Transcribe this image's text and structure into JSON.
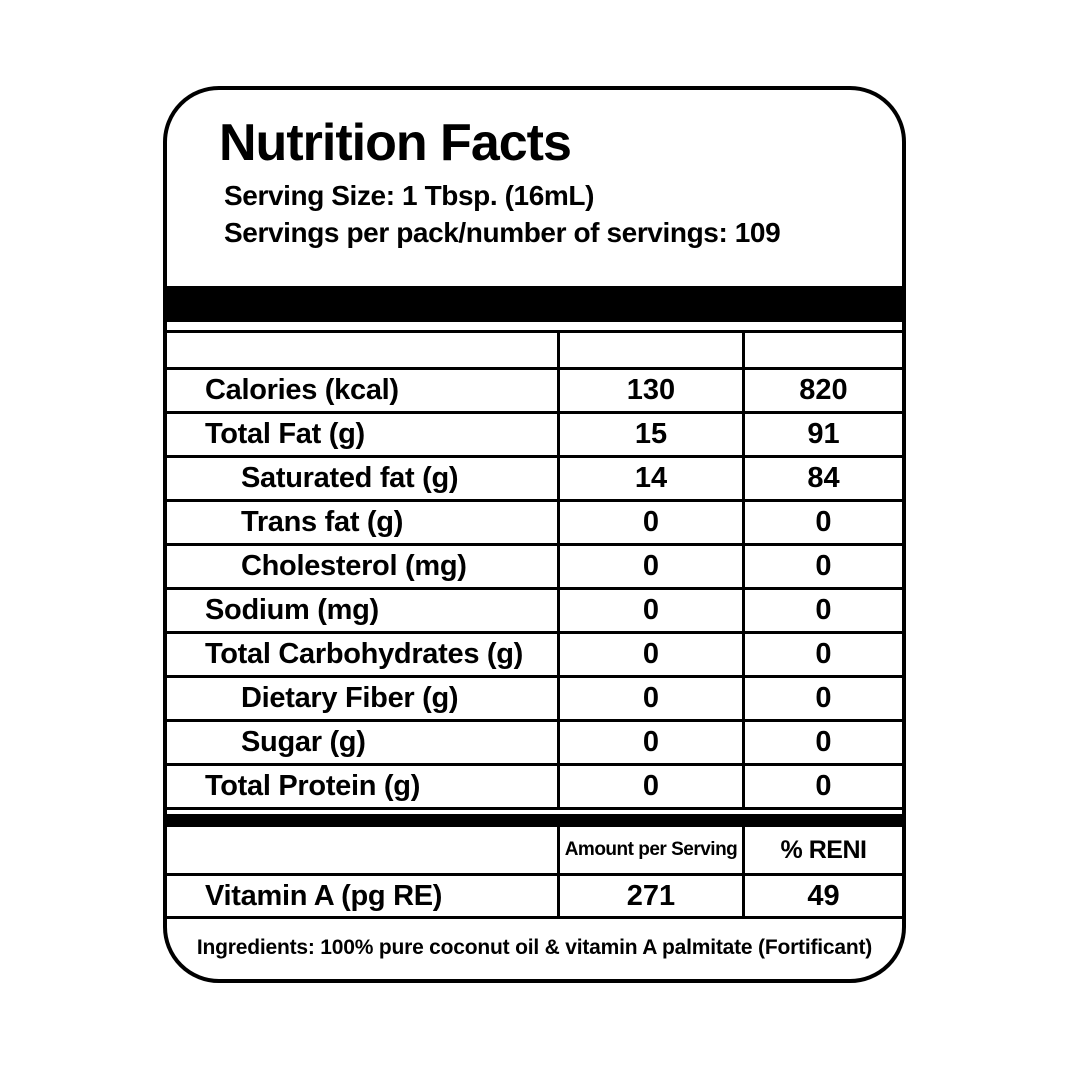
{
  "header": {
    "title": "Nutrition Facts",
    "serving_size": "Serving Size: 1 Tbsp. (16mL)",
    "servings_per_pack": "Servings per pack/number of servings: 109"
  },
  "table": {
    "rows": [
      {
        "label": "Calories (kcal)",
        "per_serving": "130",
        "per_pack": "820"
      },
      {
        "label": "Total Fat (g)",
        "per_serving": "15",
        "per_pack": "91"
      },
      {
        "label": "Saturated fat (g)",
        "per_serving": "14",
        "per_pack": "84"
      },
      {
        "label": "Trans fat (g)",
        "per_serving": "0",
        "per_pack": "0"
      },
      {
        "label": "Cholesterol (mg)",
        "per_serving": "0",
        "per_pack": "0"
      },
      {
        "label": "Sodium (mg)",
        "per_serving": "0",
        "per_pack": "0"
      },
      {
        "label": "Total Carbohydrates (g)",
        "per_serving": "0",
        "per_pack": "0"
      },
      {
        "label": "Dietary Fiber (g)",
        "per_serving": "0",
        "per_pack": "0"
      },
      {
        "label": "Sugar (g)",
        "per_serving": "0",
        "per_pack": "0"
      },
      {
        "label": "Total Protein (g)",
        "per_serving": "0",
        "per_pack": "0"
      }
    ]
  },
  "reni": {
    "amount_header": "Amount per Serving",
    "reni_header": "% RENI",
    "row": {
      "label": "Vitamin A (pg RE)",
      "amount": "271",
      "reni": "49"
    }
  },
  "ingredients": "Ingredients: 100% pure coconut oil & vitamin A palmitate (Fortificant)",
  "colors": {
    "text": "#000000",
    "background": "#ffffff",
    "bars": "#000000"
  }
}
